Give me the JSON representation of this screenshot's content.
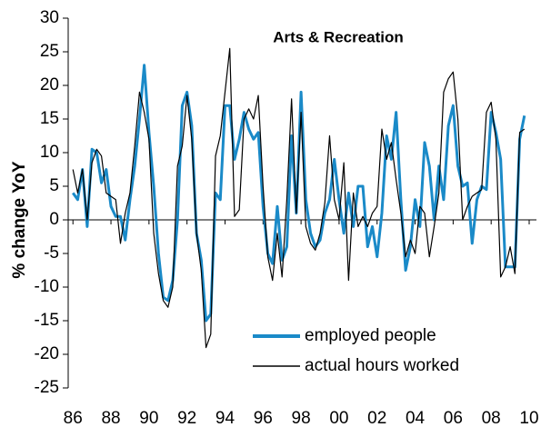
{
  "chart_data": {
    "type": "line",
    "title": "Arts & Recreation",
    "y_label": "% change YoY",
    "x": [
      1986,
      1986.25,
      1986.5,
      1986.75,
      1987,
      1987.25,
      1987.5,
      1987.75,
      1988,
      1988.25,
      1988.5,
      1988.75,
      1989,
      1989.25,
      1989.5,
      1989.75,
      1990,
      1990.25,
      1990.5,
      1990.75,
      1991,
      1991.25,
      1991.5,
      1991.75,
      1992,
      1992.25,
      1992.5,
      1992.75,
      1993,
      1993.25,
      1993.5,
      1993.75,
      1994,
      1994.25,
      1994.5,
      1994.75,
      1995,
      1995.25,
      1995.5,
      1995.75,
      1996,
      1996.25,
      1996.5,
      1996.75,
      1997,
      1997.25,
      1997.5,
      1997.75,
      1998,
      1998.25,
      1998.5,
      1998.75,
      1999,
      1999.25,
      1999.5,
      1999.75,
      2000,
      2000.25,
      2000.5,
      2000.75,
      2001,
      2001.25,
      2001.5,
      2001.75,
      2002,
      2002.25,
      2002.5,
      2002.75,
      2003,
      2003.25,
      2003.5,
      2003.75,
      2004,
      2004.25,
      2004.5,
      2004.75,
      2005,
      2005.25,
      2005.5,
      2005.75,
      2006,
      2006.25,
      2006.5,
      2006.75,
      2007,
      2007.25,
      2007.5,
      2007.75,
      2008,
      2008.25,
      2008.5,
      2008.75,
      2009,
      2009.25,
      2009.5,
      2009.75
    ],
    "series": [
      {
        "name": "employed people",
        "color": "#1a8ac8",
        "values": [
          4,
          3,
          7.5,
          -1,
          10.5,
          10,
          5.5,
          7.5,
          2,
          0.5,
          0.5,
          -3,
          3,
          8,
          15,
          23,
          13,
          5,
          -5,
          -11.5,
          -12,
          -9,
          0,
          17,
          19,
          14,
          -2,
          -6,
          -15,
          -14,
          4,
          3,
          17,
          17,
          9,
          12,
          16,
          13.5,
          12,
          13,
          2,
          -5,
          -6.5,
          2,
          -6,
          -4,
          12.5,
          1,
          19,
          3,
          -2,
          -4,
          -3,
          1,
          3,
          9,
          3,
          -2,
          4,
          -1,
          5,
          5,
          -4,
          -1,
          -5.5,
          1,
          12.5,
          9,
          16,
          3,
          -7.5,
          -4,
          3,
          -1,
          11.5,
          8,
          0,
          8,
          3,
          14,
          17,
          8,
          5,
          5.5,
          -3.5,
          3,
          5,
          4.5,
          16,
          13,
          9,
          -7,
          -7,
          -7,
          12,
          15.5
        ]
      },
      {
        "name": "actual hours worked",
        "color": "#000000",
        "values": [
          7.5,
          4,
          7.5,
          0,
          8.5,
          10.5,
          9.5,
          4,
          3.5,
          3,
          -3.5,
          1,
          4,
          11,
          19,
          16,
          12,
          -2,
          -8,
          -12,
          -13,
          -10,
          8,
          11,
          18.5,
          12,
          -2,
          -7.5,
          -19,
          -17,
          9.5,
          12.5,
          19,
          25.5,
          0.5,
          1.5,
          15,
          16.5,
          15,
          18.5,
          5,
          -5.5,
          -9,
          -2,
          -8.5,
          3,
          18,
          1,
          16,
          -1,
          -3.5,
          -4.5,
          -2,
          2.5,
          12.5,
          3,
          0,
          8.5,
          -9,
          4,
          -1,
          0.5,
          -1,
          1,
          2,
          13.5,
          9,
          11.5,
          6,
          1,
          -5.5,
          -3,
          -5,
          2,
          1,
          -5.5,
          -1,
          4,
          19,
          21,
          22,
          15,
          0,
          2,
          3.5,
          4,
          4.5,
          16,
          17.5,
          12,
          -8.5,
          -7,
          -4,
          -8,
          13,
          13.5
        ]
      }
    ],
    "xlim": [
      1985.75,
      2010
    ],
    "xticks": [
      {
        "value": 1986,
        "label": "86"
      },
      {
        "value": 1988,
        "label": "88"
      },
      {
        "value": 1990,
        "label": "90"
      },
      {
        "value": 1992,
        "label": "92"
      },
      {
        "value": 1994,
        "label": "94"
      },
      {
        "value": 1996,
        "label": "96"
      },
      {
        "value": 1998,
        "label": "98"
      },
      {
        "value": 2000,
        "label": "00"
      },
      {
        "value": 2002,
        "label": "02"
      },
      {
        "value": 2004,
        "label": "04"
      },
      {
        "value": 2006,
        "label": "06"
      },
      {
        "value": 2008,
        "label": "08"
      },
      {
        "value": 2010,
        "label": "10"
      }
    ],
    "ylim": [
      -25,
      30
    ],
    "yticks": [
      -25,
      -20,
      -15,
      -10,
      -5,
      0,
      5,
      10,
      15,
      20,
      25,
      30
    ],
    "grid": false,
    "legend": "lower right"
  }
}
